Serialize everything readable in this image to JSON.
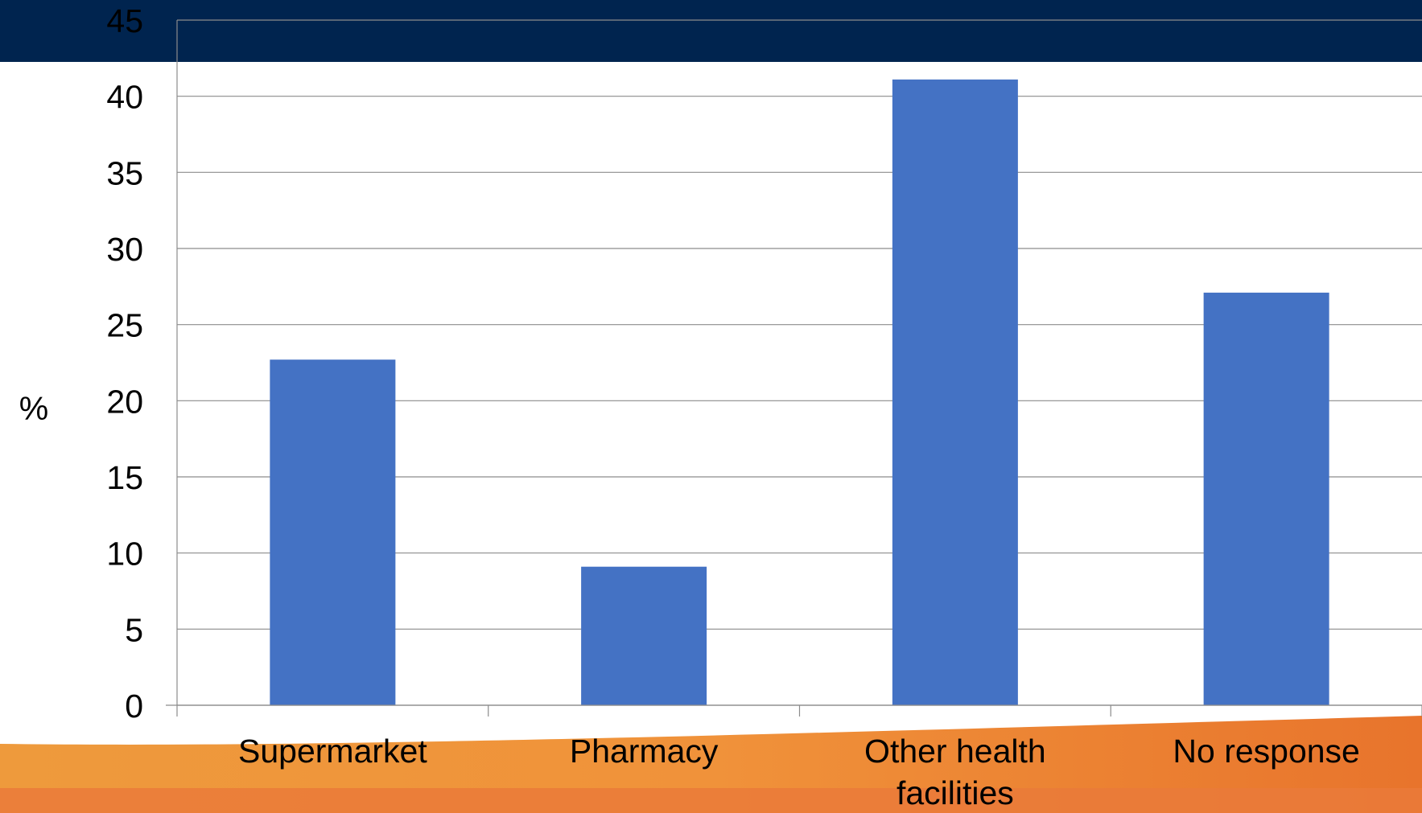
{
  "colors": {
    "header_band": "#00244f",
    "bar": "#4472c4",
    "gridline": "#8c8c8c",
    "footer_orange": "#ed8a2e"
  },
  "chart_data": {
    "type": "bar",
    "categories": [
      "Supermarket",
      "Pharmacy",
      "Other health facilities",
      "No response"
    ],
    "category_lines": [
      [
        "Supermarket"
      ],
      [
        "Pharmacy"
      ],
      [
        "Other health",
        "facilities"
      ],
      [
        "No response"
      ]
    ],
    "values": [
      22.7,
      9.1,
      41.1,
      27.1
    ],
    "xlabel": "",
    "ylabel": "%",
    "ylim": [
      0,
      45
    ],
    "yticks": [
      0,
      5,
      10,
      15,
      20,
      25,
      30,
      35,
      40,
      45
    ],
    "grid": true,
    "legend": "none"
  }
}
